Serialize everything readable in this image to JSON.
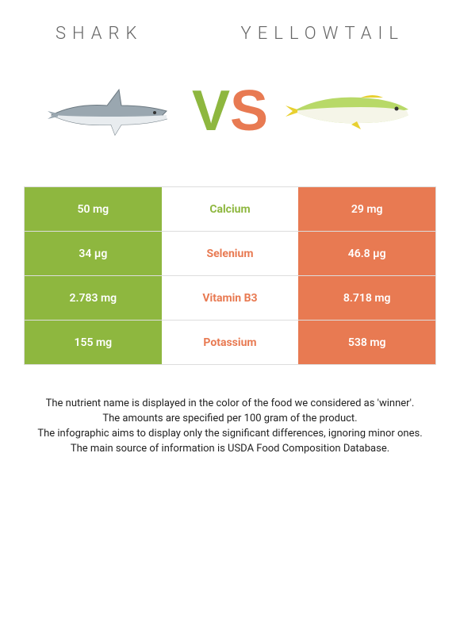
{
  "colors": {
    "left": "#8eb73f",
    "right": "#e87a52"
  },
  "header": {
    "leftTitle": "Shark",
    "rightTitle": "Yellowtail"
  },
  "vs": {
    "v": "V",
    "s": "S"
  },
  "nutrients": [
    {
      "name": "Calcium",
      "left": "50 mg",
      "right": "29 mg",
      "winner": "left"
    },
    {
      "name": "Selenium",
      "left": "34 µg",
      "right": "46.8 µg",
      "winner": "right"
    },
    {
      "name": "Vitamin B3",
      "left": "2.783 mg",
      "right": "8.718 mg",
      "winner": "right"
    },
    {
      "name": "Potassium",
      "left": "155 mg",
      "right": "538 mg",
      "winner": "right"
    }
  ],
  "footer": {
    "l1": "The nutrient name is displayed in the color of the food we considered as 'winner'.",
    "l2": "The amounts are specified per 100 gram of the product.",
    "l3": "The infographic aims to display only the significant differences, ignoring minor ones.",
    "l4": "The main source of information is USDA Food Composition Database."
  }
}
